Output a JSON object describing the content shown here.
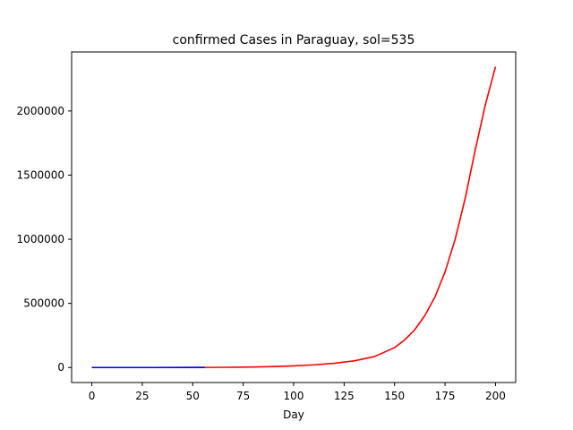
{
  "chart_data": {
    "type": "line",
    "title": "confirmed Cases in Paraguay, sol=535",
    "xlabel": "Day",
    "ylabel": "",
    "xlim": [
      -10,
      210
    ],
    "ylim": [
      -117000,
      2460000
    ],
    "x_ticks": [
      0,
      25,
      50,
      75,
      100,
      125,
      150,
      175,
      200
    ],
    "y_ticks": [
      0,
      500000,
      1000000,
      1500000,
      2000000
    ],
    "grid": false,
    "legend": "none",
    "series": [
      {
        "color": "#ff0000",
        "x": [
          0,
          10,
          20,
          30,
          40,
          50,
          60,
          70,
          80,
          90,
          100,
          110,
          120,
          130,
          140,
          150,
          155,
          160,
          165,
          170,
          175,
          180,
          185,
          190,
          195,
          200
        ],
        "values": [
          1,
          3,
          10,
          30,
          90,
          300,
          900,
          2000,
          4000,
          7500,
          13000,
          21000,
          33000,
          52000,
          85000,
          155000,
          215000,
          295000,
          405000,
          550000,
          745000,
          1000000,
          1320000,
          1700000,
          2050000,
          2345000
        ]
      },
      {
        "color": "#0000ff",
        "x": [
          0,
          10,
          20,
          30,
          40,
          50,
          56
        ],
        "values": [
          1,
          3,
          10,
          20,
          60,
          200,
          400
        ]
      }
    ]
  }
}
